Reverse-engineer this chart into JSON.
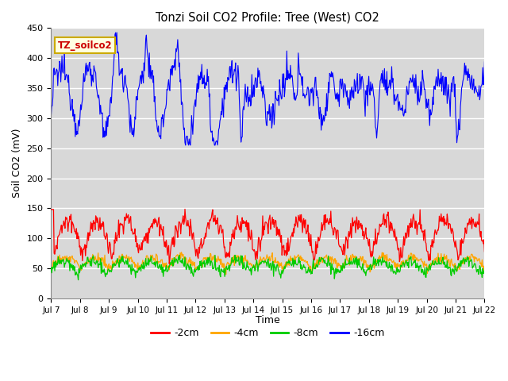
{
  "title": "Tonzi Soil CO2 Profile: Tree (West) CO2",
  "ylabel": "Soil CO2 (mV)",
  "xlabel": "Time",
  "legend_label": "TZ_soilco2",
  "series_labels": [
    "-2cm",
    "-4cm",
    "-8cm",
    "-16cm"
  ],
  "series_colors": [
    "#ff0000",
    "#ffa500",
    "#00cc00",
    "#0000ff"
  ],
  "ylim": [
    0,
    450
  ],
  "yticks": [
    0,
    50,
    100,
    150,
    200,
    250,
    300,
    350,
    400,
    450
  ],
  "plot_bg_color": "#d8d8d8",
  "n_points": 720,
  "x_start": 7,
  "x_end": 22,
  "x_tick_positions": [
    7,
    8,
    9,
    10,
    11,
    12,
    13,
    14,
    15,
    16,
    17,
    18,
    19,
    20,
    21,
    22
  ],
  "x_tick_labels": [
    "Jul 7",
    "Jul 8",
    "Jul 9",
    "Jul 10",
    "Jul 11",
    "Jul 12",
    "Jul 13",
    "Jul 14",
    "Jul 15",
    "Jul 16",
    "Jul 17",
    "Jul 18",
    "Jul 19",
    "Jul 20",
    "Jul 21",
    "Jul 22"
  ],
  "figsize": [
    6.4,
    4.8
  ],
  "dpi": 100
}
